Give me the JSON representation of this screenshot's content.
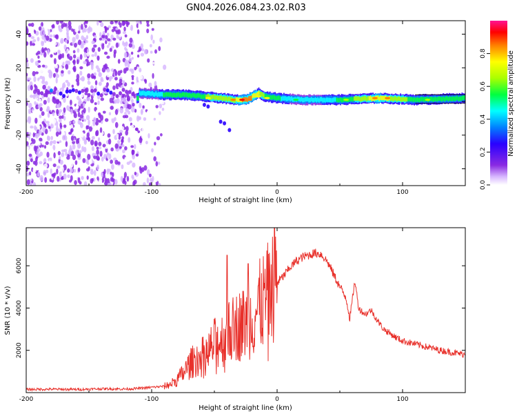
{
  "title": "GN04.2026.084.23.02.R03",
  "chart_data": [
    {
      "type": "heatmap",
      "title": "GN04.2026.084.23.02.R03",
      "xlabel": "Height of straight line (km)",
      "ylabel": "Frequency (Hz)",
      "xlim": [
        -200,
        150
      ],
      "ylim": [
        -50,
        48
      ],
      "xticks": [
        -200,
        -100,
        0,
        100
      ],
      "yticks": [
        -40,
        -20,
        0,
        20,
        40
      ],
      "tick_labels_x": [
        "-200",
        "-100",
        "0",
        "100"
      ],
      "tick_labels_y": [
        "-40",
        "-20",
        "0",
        "20",
        "40"
      ],
      "colorbar": {
        "label": "Normalized spectral amplitude",
        "range": [
          0.0,
          1.0
        ],
        "ticks": [
          "0.0",
          "0.2",
          "0.4",
          "0.6",
          "0.8"
        ],
        "colors": [
          "#ffffff",
          "#d8b8ff",
          "#8a2be2",
          "#2a00ff",
          "#0080ff",
          "#00ffff",
          "#00ff40",
          "#aaff00",
          "#ffff00",
          "#ff8000",
          "#ff0000",
          "#ff1493"
        ]
      },
      "ridge": {
        "x": [
          -110,
          -90,
          -75,
          -60,
          -45,
          -35,
          -25,
          -15,
          -10,
          0,
          20,
          50,
          80,
          110,
          150
        ],
        "freq": [
          5,
          4,
          4,
          3,
          2,
          1,
          1,
          5,
          3,
          2,
          1,
          1,
          2,
          1,
          2
        ],
        "amplitude": [
          0.4,
          0.5,
          0.55,
          0.6,
          0.65,
          0.7,
          0.9,
          0.75,
          0.6,
          0.5,
          0.45,
          0.5,
          0.8,
          0.55,
          0.6
        ]
      }
    },
    {
      "type": "line",
      "xlabel": "Height of straight line (km)",
      "ylabel": "SNR (10 * v/v)",
      "xlim": [
        -200,
        150
      ],
      "ylim": [
        0,
        7800
      ],
      "xticks": [
        -200,
        -100,
        0,
        100
      ],
      "yticks": [
        2000,
        4000,
        6000
      ],
      "tick_labels_x": [
        "-200",
        "-100",
        "0",
        "100"
      ],
      "tick_labels_y": [
        "2000",
        "4000",
        "6000"
      ],
      "series": [
        {
          "name": "SNR",
          "color": "#e8302a",
          "x": [
            -200,
            -180,
            -160,
            -140,
            -120,
            -110,
            -100,
            -90,
            -85,
            -80,
            -75,
            -70,
            -65,
            -60,
            -55,
            -50,
            -45,
            -40,
            -35,
            -30,
            -25,
            -20,
            -15,
            -10,
            -5,
            -2,
            0,
            5,
            10,
            15,
            20,
            25,
            30,
            35,
            40,
            45,
            50,
            55,
            58,
            62,
            65,
            70,
            75,
            80,
            85,
            90,
            95,
            100,
            110,
            120,
            130,
            140,
            150
          ],
          "values": [
            150,
            160,
            150,
            180,
            170,
            200,
            250,
            300,
            400,
            600,
            900,
            1300,
            1600,
            1700,
            1900,
            2300,
            2500,
            2700,
            3000,
            3200,
            3300,
            3500,
            4000,
            4400,
            4800,
            5300,
            5200,
            5500,
            5900,
            6200,
            6400,
            6500,
            6600,
            6550,
            6200,
            5600,
            5000,
            4500,
            3500,
            5300,
            4000,
            3700,
            3900,
            3400,
            3000,
            2800,
            2600,
            2450,
            2300,
            2150,
            2000,
            1900,
            1800
          ]
        }
      ]
    }
  ]
}
